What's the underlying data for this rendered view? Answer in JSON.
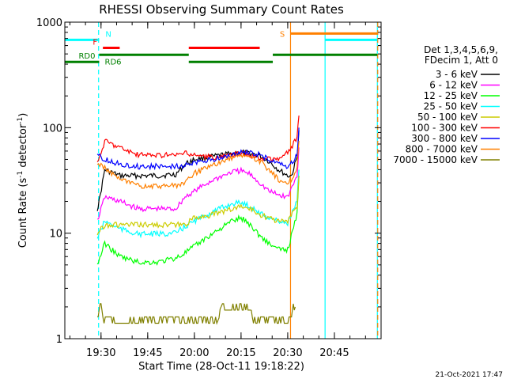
{
  "chart_data": {
    "type": "line",
    "title": "RHESSI Observing Summary Count Rates",
    "xlabel": "Start Time (28-Oct-11 19:18:22)",
    "ylabel_main": "Count Rate (s",
    "ylabel_sup1": "-1",
    "ylabel_mid": " detector",
    "ylabel_sup2": "-1",
    "ylabel_end": ")",
    "y_scale": "log",
    "ylim": [
      1,
      1000
    ],
    "xlim": [
      19.3061,
      21.0
    ],
    "x_ticks": [
      {
        "t": 19.5,
        "label": "19:30"
      },
      {
        "t": 19.75,
        "label": "19:45"
      },
      {
        "t": 20.0,
        "label": "20:00"
      },
      {
        "t": 20.25,
        "label": "20:15"
      },
      {
        "t": 20.5,
        "label": "20:30"
      },
      {
        "t": 20.75,
        "label": "20:45"
      }
    ],
    "y_ticks": [
      {
        "v": 1,
        "label": "1"
      },
      {
        "v": 10,
        "label": "10"
      },
      {
        "v": 100,
        "label": "100"
      },
      {
        "v": 1000,
        "label": "1000"
      }
    ],
    "legend_position": "right",
    "legend_header": [
      "Det 1,3,4,5,6,9,",
      "FDecim 1, Att 0"
    ],
    "timestamp": "21-Oct-2021 17:47",
    "series": [
      {
        "name": "3 - 6 keV",
        "color": "#000000",
        "x": [
          19.48,
          19.49,
          19.52,
          19.6,
          19.7,
          19.8,
          19.9,
          19.95,
          20.0,
          20.1,
          20.2,
          20.25,
          20.3,
          20.35,
          20.4,
          20.45,
          20.5,
          20.52,
          20.55,
          20.56
        ],
        "y": [
          17,
          20,
          40,
          35,
          35,
          35,
          36,
          45,
          50,
          53,
          57,
          58,
          57,
          54,
          48,
          40,
          35,
          35,
          52,
          95
        ]
      },
      {
        "name": "6 - 12 keV",
        "color": "#ff00ff",
        "x": [
          19.48,
          19.52,
          19.6,
          19.7,
          19.8,
          19.9,
          19.95,
          20.0,
          20.1,
          20.2,
          20.25,
          20.3,
          20.35,
          20.4,
          20.45,
          20.5,
          20.55,
          20.56
        ],
        "y": [
          13,
          22,
          20,
          17,
          17,
          17,
          22,
          25,
          32,
          38,
          39,
          36,
          30,
          25,
          23,
          22,
          35,
          65
        ]
      },
      {
        "name": "12 - 25 keV",
        "color": "#00ff00",
        "x": [
          19.48,
          19.52,
          19.6,
          19.7,
          19.8,
          19.9,
          19.95,
          20.0,
          20.1,
          20.2,
          20.25,
          20.3,
          20.35,
          20.4,
          20.45,
          20.5,
          20.55,
          20.56
        ],
        "y": [
          5,
          8,
          6,
          5.3,
          5.3,
          5.8,
          6.5,
          7.5,
          10,
          13,
          14,
          12,
          9.5,
          8,
          7,
          7,
          15,
          35
        ]
      },
      {
        "name": "25 - 50 keV",
        "color": "#00ffff",
        "x": [
          19.48,
          19.52,
          19.6,
          19.7,
          19.8,
          19.9,
          19.95,
          20.0,
          20.1,
          20.2,
          20.25,
          20.3,
          20.35,
          20.4,
          20.45,
          20.5,
          20.55,
          20.56
        ],
        "y": [
          9,
          13,
          11,
          9.8,
          9.8,
          10,
          11.5,
          13,
          16,
          19,
          19.5,
          18,
          15.5,
          14,
          13,
          12.5,
          20,
          40
        ]
      },
      {
        "name": "50 - 100 keV",
        "color": "#cccc00",
        "x": [
          19.48,
          19.52,
          19.6,
          19.7,
          19.8,
          19.9,
          19.95,
          20.0,
          20.1,
          20.2,
          20.25,
          20.3,
          20.35,
          20.4,
          20.45,
          20.5,
          20.55,
          20.56
        ],
        "y": [
          10,
          12,
          12,
          12,
          12,
          12,
          12,
          14,
          15,
          17,
          18,
          17,
          15,
          14,
          13,
          13,
          18,
          35
        ]
      },
      {
        "name": "100 - 300 keV",
        "color": "#ff0000",
        "x": [
          19.48,
          19.52,
          19.6,
          19.7,
          19.8,
          19.9,
          19.95,
          20.0,
          20.1,
          20.2,
          20.25,
          20.3,
          20.35,
          20.4,
          20.45,
          20.5,
          20.55,
          20.56
        ],
        "y": [
          45,
          75,
          65,
          55,
          55,
          55,
          57,
          55,
          52,
          55,
          57,
          55,
          52,
          50,
          50,
          58,
          80,
          130
        ]
      },
      {
        "name": "300 - 800 keV",
        "color": "#0000ff",
        "x": [
          19.48,
          19.52,
          19.6,
          19.7,
          19.8,
          19.9,
          19.95,
          20.0,
          20.1,
          20.2,
          20.25,
          20.3,
          20.35,
          20.4,
          20.45,
          20.5,
          20.55,
          20.56
        ],
        "y": [
          55,
          50,
          45,
          43,
          43,
          43,
          44,
          46,
          50,
          55,
          58,
          58,
          55,
          50,
          45,
          42,
          55,
          100
        ]
      },
      {
        "name": "800 - 7000 keV",
        "color": "#ff8000",
        "x": [
          19.48,
          19.52,
          19.6,
          19.7,
          19.8,
          19.9,
          19.95,
          20.0,
          20.1,
          20.2,
          20.25,
          20.3,
          20.35,
          20.4,
          20.45,
          20.5,
          20.55,
          20.56
        ],
        "y": [
          45,
          42,
          32,
          28,
          28,
          28,
          30,
          37,
          44,
          52,
          55,
          53,
          48,
          40,
          32,
          29,
          40,
          75
        ]
      },
      {
        "name": "7000 - 15000 keV",
        "color": "#808000",
        "x": [
          19.48,
          19.49,
          19.5,
          19.51,
          20.12,
          20.15,
          20.2,
          20.25,
          20.3,
          20.31,
          20.52,
          20.53,
          20.54
        ],
        "y": [
          1.5,
          2,
          2,
          1.5,
          1.5,
          2,
          2,
          2,
          2,
          1.5,
          1.5,
          2,
          2
        ]
      }
    ],
    "flags": [
      {
        "label": "",
        "color": "#00ffff",
        "y": 680,
        "x0": 19.306,
        "x1": 19.47
      },
      {
        "label": "N",
        "color": "#00ffff",
        "y": 680,
        "x0": 19.47,
        "x1": 19.49,
        "label_t": 19.49
      },
      {
        "label": "F",
        "color": "#ff0000",
        "y": 570,
        "x0": 19.51,
        "x1": 19.6,
        "label_t": 19.49
      },
      {
        "label": "",
        "color": "#ff0000",
        "y": 570,
        "x0": 19.97,
        "x1": 20.35
      },
      {
        "label": "RD0",
        "color": "#008000",
        "y": 420,
        "x0": 19.306,
        "x1": 19.49,
        "label_t": 19.38
      },
      {
        "label": "RD6",
        "color": "#008000",
        "y": 490,
        "x0": 19.49,
        "x1": 19.97,
        "label_t": 19.52
      },
      {
        "label": "",
        "color": "#008000",
        "y": 420,
        "x0": 19.97,
        "x1": 20.42
      },
      {
        "label": "",
        "color": "#008000",
        "y": 490,
        "x0": 20.42,
        "x1": 20.98
      },
      {
        "label": "S",
        "color": "#ff8000",
        "y": 780,
        "x0": 20.515,
        "x1": 20.98,
        "label_t": 20.47
      },
      {
        "label": "",
        "color": "#00ffff",
        "y": 680,
        "x0": 20.7,
        "x1": 20.98
      }
    ],
    "vlines": [
      {
        "t": 19.487,
        "color": "#00ffff",
        "dashed": true
      },
      {
        "t": 20.515,
        "color": "#ff8000",
        "dashed": false
      },
      {
        "t": 20.7,
        "color": "#00ffff",
        "dashed": false
      },
      {
        "t": 20.98,
        "color": "#00ffff",
        "dashed": false
      },
      {
        "t": 20.982,
        "color": "#ff8000",
        "dashed": true
      }
    ]
  }
}
